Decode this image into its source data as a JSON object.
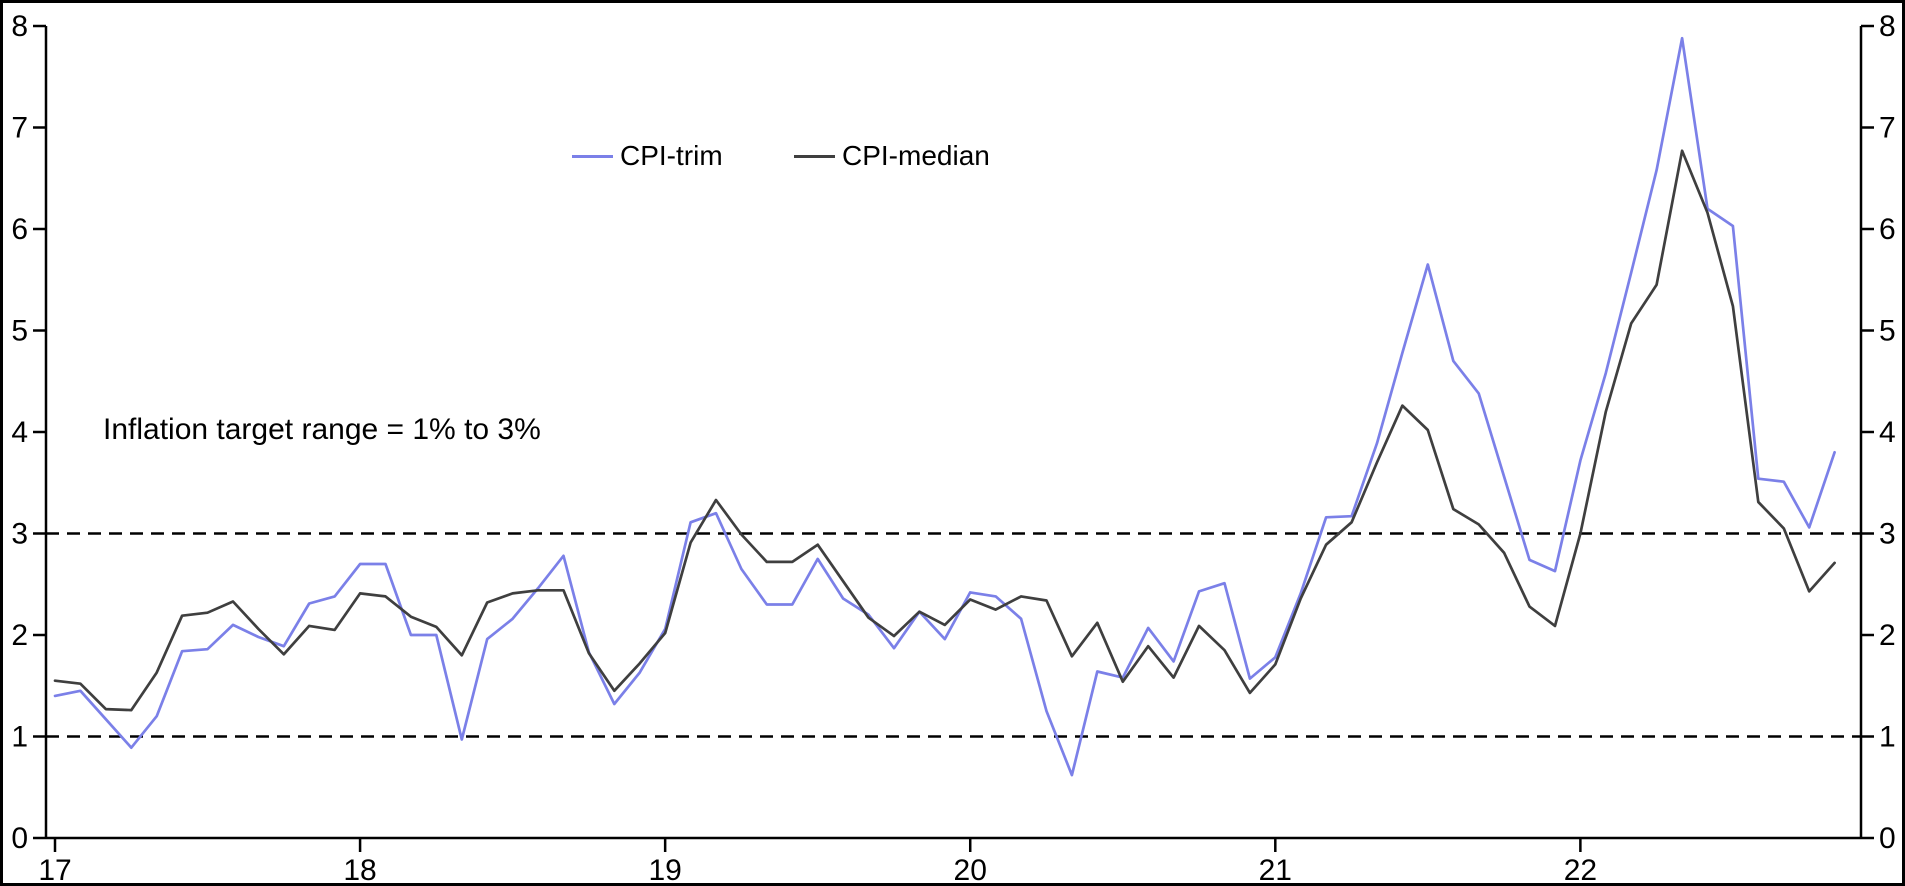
{
  "page": {
    "background": "#ffffff",
    "frame_color": "#000000"
  },
  "chart_data": {
    "type": "line",
    "title": "",
    "frequency": "monthly",
    "start_period": "2017-01",
    "end_period": "2022-11",
    "x_tick_labels": [
      "17",
      "18",
      "19",
      "20",
      "21",
      "22"
    ],
    "x_tick_month_indices": [
      0,
      12,
      24,
      36,
      48,
      60
    ],
    "y_ticks": [
      "0",
      "1",
      "2",
      "3",
      "4",
      "5",
      "6",
      "7",
      "8"
    ],
    "ylim": [
      0,
      8
    ],
    "y_axis_sides": "both",
    "grid": "off",
    "legend_position": "top-center",
    "annotation": "Inflation target range = 1% to 3%",
    "dashed_reference_lines": [
      1,
      3
    ],
    "axis_color": "#000000",
    "series": [
      {
        "name": "CPI-trim",
        "color": "#7b80e8",
        "values": [
          1.4,
          1.45,
          1.17,
          0.89,
          1.2,
          1.84,
          1.86,
          2.1,
          1.98,
          1.89,
          2.31,
          2.38,
          2.7,
          2.7,
          2.0,
          2.0,
          0.97,
          1.96,
          2.16,
          2.46,
          2.78,
          1.83,
          1.32,
          1.63,
          2.06,
          3.11,
          3.2,
          2.65,
          2.3,
          2.3,
          2.75,
          2.36,
          2.2,
          1.87,
          2.23,
          1.96,
          2.42,
          2.38,
          2.16,
          1.25,
          0.62,
          1.64,
          1.58,
          2.07,
          1.74,
          2.43,
          2.51,
          1.57,
          1.78,
          2.41,
          3.16,
          3.17,
          3.89,
          4.78,
          5.65,
          4.7,
          4.38,
          3.56,
          2.74,
          2.63,
          3.72,
          4.58,
          5.57,
          6.58,
          7.88,
          6.2,
          6.03,
          3.54,
          3.51,
          3.06,
          3.8
        ]
      },
      {
        "name": "CPI-median",
        "color": "#3f3f3f",
        "values": [
          1.55,
          1.52,
          1.27,
          1.26,
          1.63,
          2.19,
          2.22,
          2.33,
          2.06,
          1.81,
          2.09,
          2.05,
          2.41,
          2.38,
          2.18,
          2.08,
          1.8,
          2.32,
          2.41,
          2.44,
          2.44,
          1.82,
          1.45,
          1.72,
          2.02,
          2.91,
          3.33,
          2.99,
          2.72,
          2.72,
          2.89,
          2.53,
          2.17,
          1.99,
          2.23,
          2.1,
          2.35,
          2.25,
          2.38,
          2.34,
          1.79,
          2.12,
          1.54,
          1.89,
          1.58,
          2.09,
          1.85,
          1.43,
          1.71,
          2.36,
          2.89,
          3.11,
          3.7,
          4.26,
          4.02,
          3.24,
          3.09,
          2.81,
          2.28,
          2.09,
          3.0,
          4.2,
          5.07,
          5.45,
          6.77,
          6.16,
          5.24,
          3.31,
          3.05,
          2.43,
          2.71
        ]
      }
    ]
  }
}
